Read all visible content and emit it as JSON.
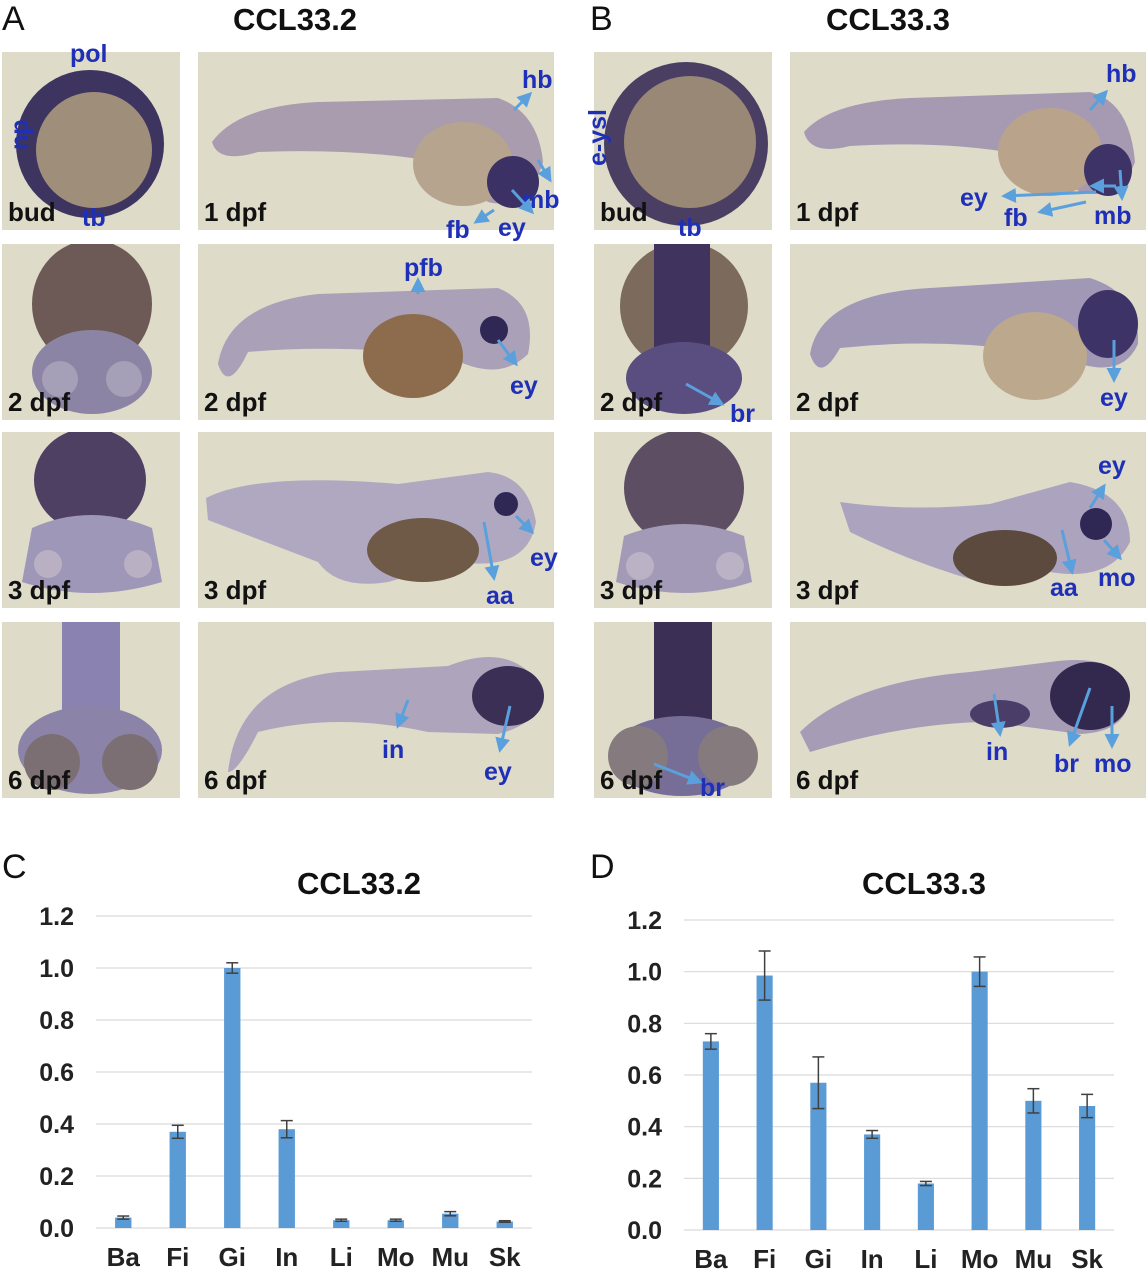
{
  "panels": {
    "A": {
      "letter": "A",
      "title": "CCL33.2"
    },
    "B": {
      "letter": "B",
      "title": "CCL33.3"
    },
    "C": {
      "letter": "C",
      "title": "CCL33.2"
    },
    "D": {
      "letter": "D",
      "title": "CCL33.3"
    }
  },
  "images": [
    {
      "id": "a-bud",
      "stage": "bud",
      "labels": [
        "pol",
        "np",
        "tb"
      ]
    },
    {
      "id": "a-1dpf",
      "stage": "1 dpf",
      "labels": [
        "hb",
        "mb",
        "ey",
        "fb"
      ]
    },
    {
      "id": "a-2dpf-v",
      "stage": "2 dpf",
      "labels": []
    },
    {
      "id": "a-2dpf",
      "stage": "2 dpf",
      "labels": [
        "pfb",
        "ey"
      ]
    },
    {
      "id": "a-3dpf-v",
      "stage": "3 dpf",
      "labels": []
    },
    {
      "id": "a-3dpf",
      "stage": "3 dpf",
      "labels": [
        "ey",
        "aa"
      ]
    },
    {
      "id": "a-6dpf-v",
      "stage": "6 dpf",
      "labels": []
    },
    {
      "id": "a-6dpf",
      "stage": "6 dpf",
      "labels": [
        "in",
        "ey"
      ]
    },
    {
      "id": "b-bud",
      "stage": "bud",
      "labels": [
        "e-ysl",
        "tb"
      ]
    },
    {
      "id": "b-1dpf",
      "stage": "1 dpf",
      "labels": [
        "hb",
        "ey",
        "fb",
        "mb"
      ]
    },
    {
      "id": "b-2dpf-v",
      "stage": "2 dpf",
      "labels": [
        "br"
      ]
    },
    {
      "id": "b-2dpf",
      "stage": "2 dpf",
      "labels": [
        "ey"
      ]
    },
    {
      "id": "b-3dpf-v",
      "stage": "3 dpf",
      "labels": []
    },
    {
      "id": "b-3dpf",
      "stage": "3 dpf",
      "labels": [
        "ey",
        "aa",
        "mo"
      ]
    },
    {
      "id": "b-6dpf-v",
      "stage": "6 dpf",
      "labels": [
        "br"
      ]
    },
    {
      "id": "b-6dpf",
      "stage": "6 dpf",
      "labels": [
        "in",
        "br",
        "mo"
      ]
    }
  ],
  "colors": {
    "bar": "#5b9bd5",
    "label": "#1e2fb8",
    "arrow": "#5aa0dc",
    "grid": "#d9d9d9",
    "error": "#404040"
  },
  "chart_data": [
    {
      "type": "bar",
      "title": "CCL33.2",
      "categories": [
        "Ba",
        "Fi",
        "Gi",
        "In",
        "Li",
        "Mo",
        "Mu",
        "Sk"
      ],
      "values": [
        0.04,
        0.37,
        1.0,
        0.38,
        0.03,
        0.03,
        0.055,
        0.025
      ],
      "errors": [
        0.006,
        0.025,
        0.02,
        0.033,
        0.004,
        0.004,
        0.008,
        0.003
      ],
      "ylim": [
        0,
        1.2
      ],
      "yticks": [
        "0.0",
        "0.2",
        "0.4",
        "0.6",
        "0.8",
        "1.0",
        "1.2"
      ],
      "grid": true
    },
    {
      "type": "bar",
      "title": "CCL33.3",
      "categories": [
        "Ba",
        "Fi",
        "Gi",
        "In",
        "Li",
        "Mo",
        "Mu",
        "Sk"
      ],
      "values": [
        0.73,
        0.985,
        0.57,
        0.37,
        0.18,
        1.0,
        0.5,
        0.48
      ],
      "errors": [
        0.03,
        0.095,
        0.1,
        0.015,
        0.008,
        0.057,
        0.047,
        0.045
      ],
      "ylim": [
        0,
        1.2
      ],
      "yticks": [
        "0.0",
        "0.2",
        "0.4",
        "0.6",
        "0.8",
        "1.0",
        "1.2"
      ],
      "grid": true
    }
  ]
}
